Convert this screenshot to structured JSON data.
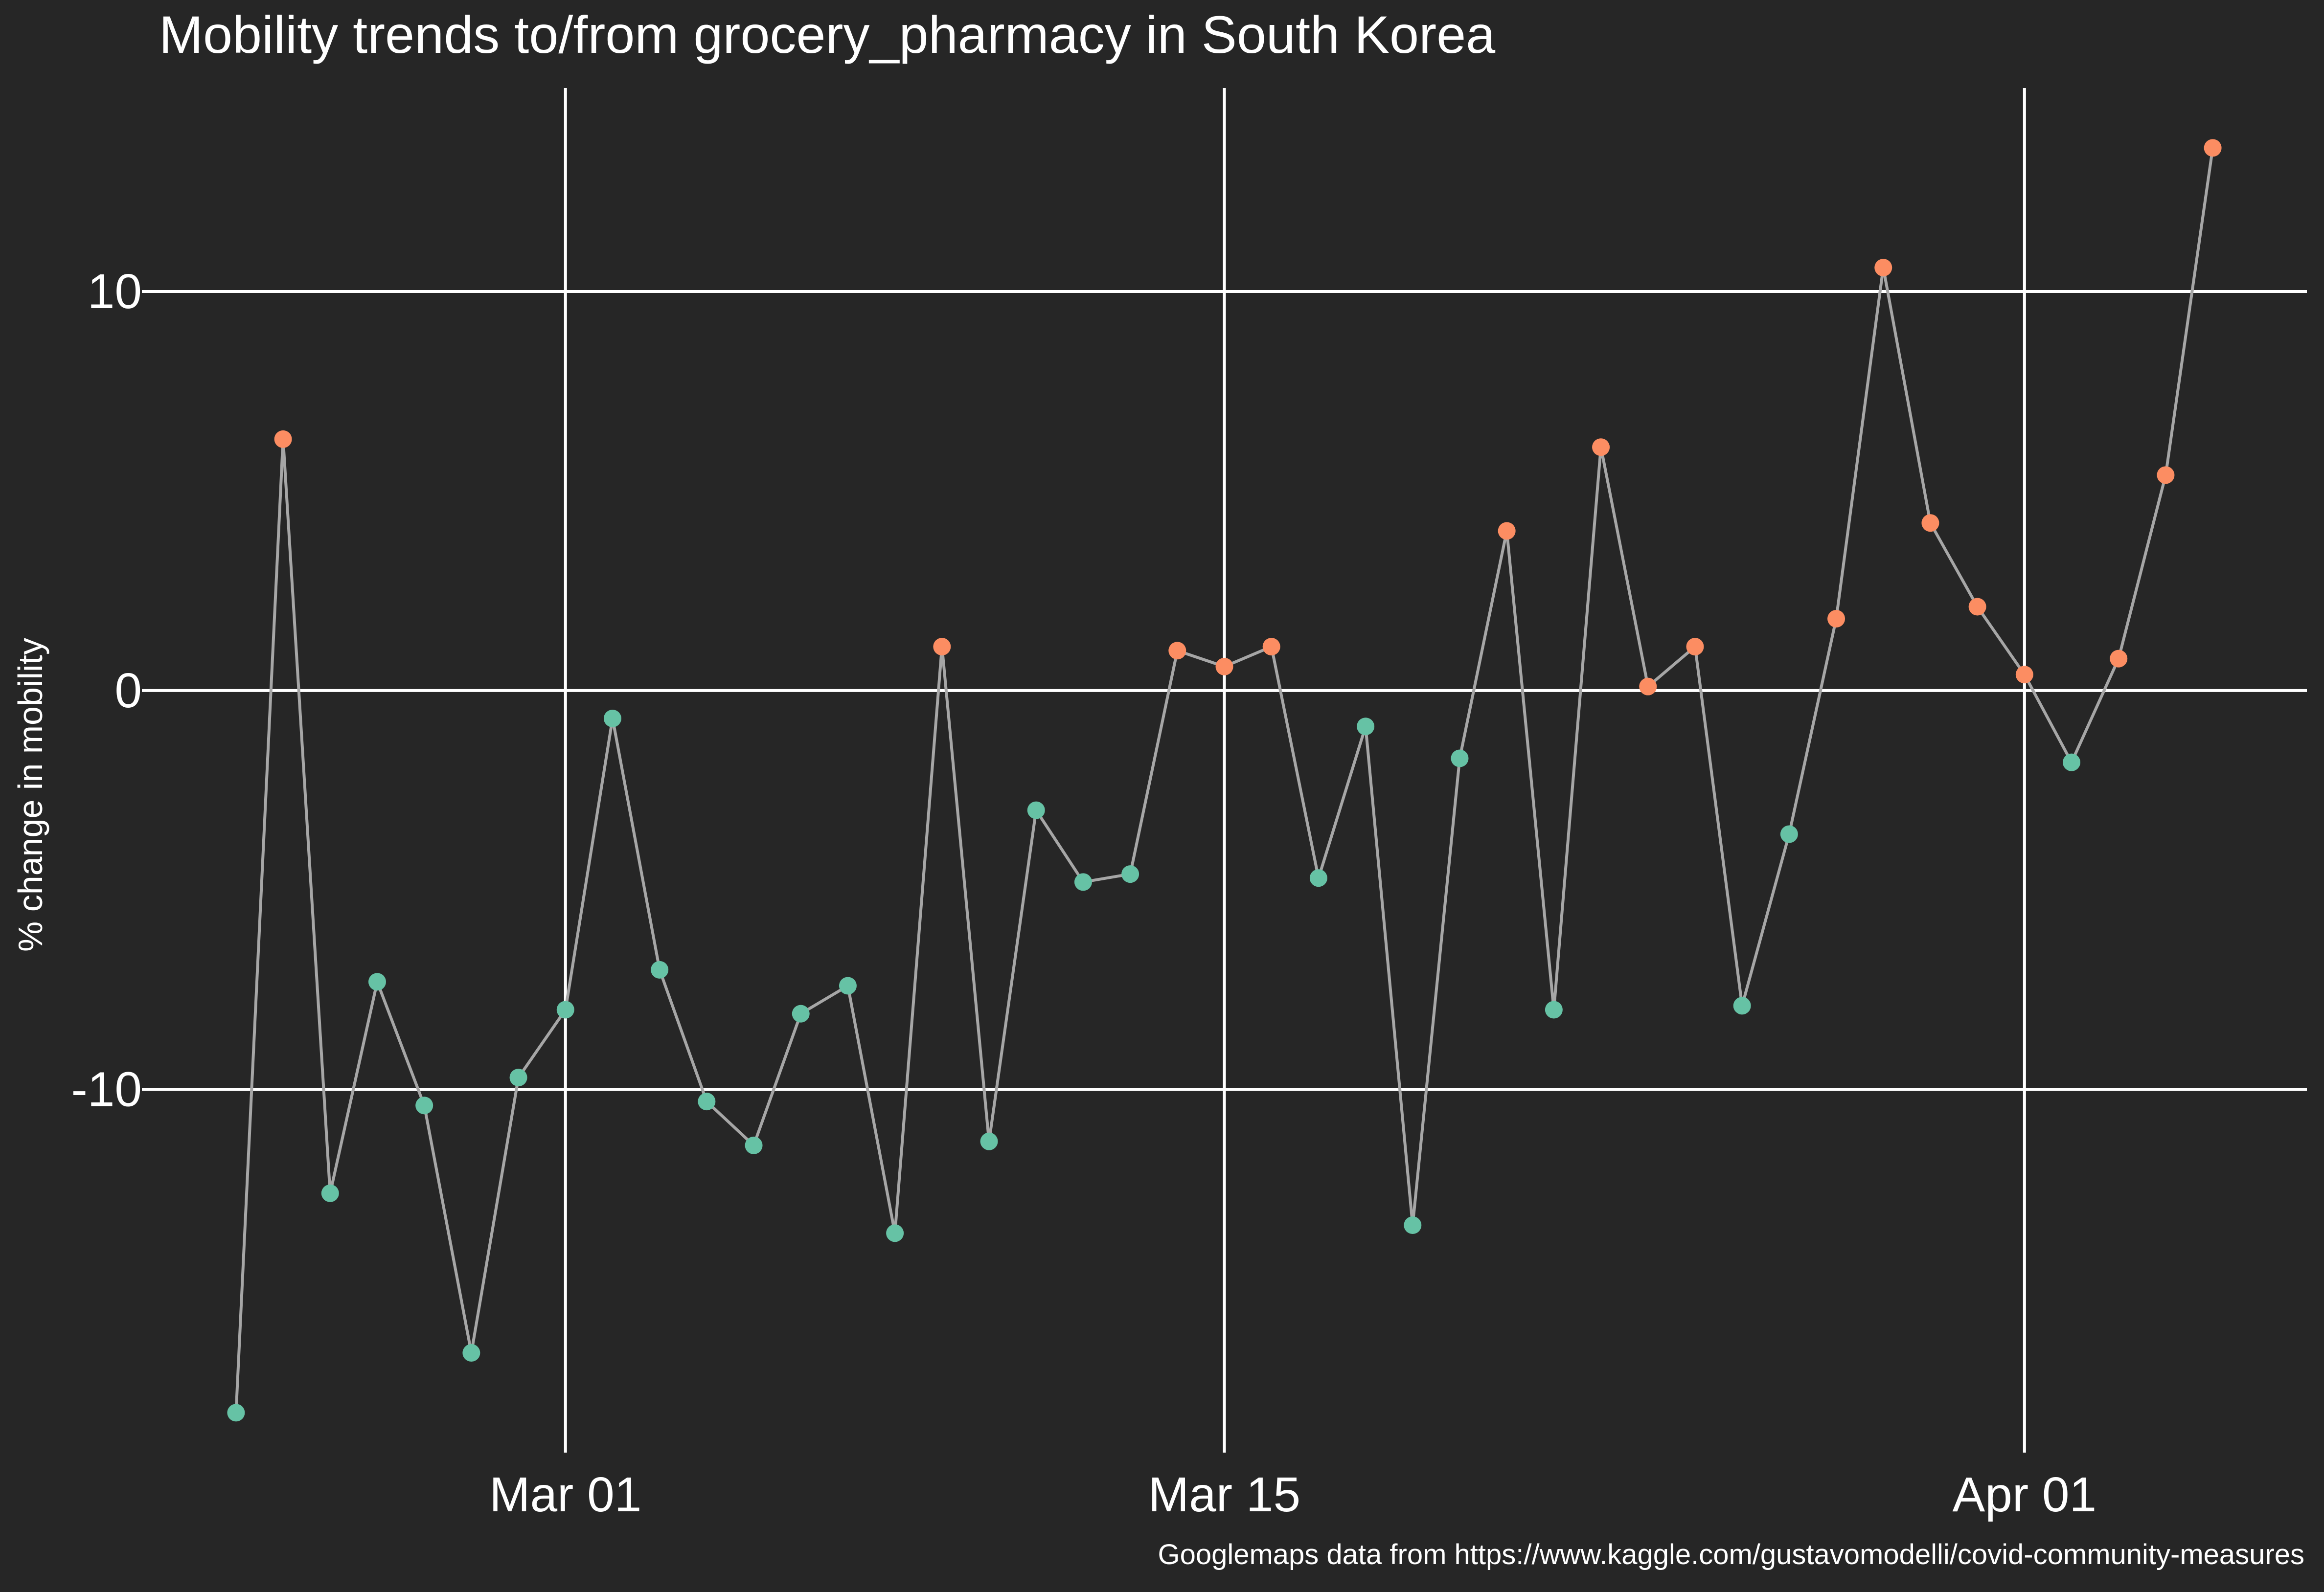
{
  "chart_data": {
    "type": "line",
    "title": "Mobility trends to/from grocery_pharmacy in South Korea",
    "xlabel": "",
    "ylabel": "% change in mobility",
    "caption": "Googlemaps data from https://www.kaggle.com/gustavomodelli/covid-community-measures",
    "x_ticks": [
      {
        "date": "2020-03-01",
        "label": "Mar 01"
      },
      {
        "date": "2020-03-15",
        "label": "Mar 15"
      },
      {
        "date": "2020-04-01",
        "label": "Apr 01"
      }
    ],
    "y_ticks": [
      {
        "value": -10,
        "label": "-10"
      },
      {
        "value": 0,
        "label": "0"
      },
      {
        "value": 10,
        "label": "10"
      }
    ],
    "xlim": [
      "2020-02-21",
      "2020-04-07"
    ],
    "ylim": [
      -19.1,
      15.1
    ],
    "grid": true,
    "background": "#262626",
    "line_color": "#a6a6a6",
    "point_color_positive": "#fc8d62",
    "point_color_negative": "#66c2a5",
    "points": [
      {
        "date": "2020-02-23",
        "value": -18.1
      },
      {
        "date": "2020-02-24",
        "value": 6.3
      },
      {
        "date": "2020-02-25",
        "value": -12.6
      },
      {
        "date": "2020-02-26",
        "value": -7.3
      },
      {
        "date": "2020-02-27",
        "value": -10.4
      },
      {
        "date": "2020-02-28",
        "value": -16.6
      },
      {
        "date": "2020-02-29",
        "value": -9.7
      },
      {
        "date": "2020-03-01",
        "value": -8.0
      },
      {
        "date": "2020-03-02",
        "value": -0.7
      },
      {
        "date": "2020-03-03",
        "value": -7.0
      },
      {
        "date": "2020-03-04",
        "value": -10.3
      },
      {
        "date": "2020-03-05",
        "value": -11.4
      },
      {
        "date": "2020-03-06",
        "value": -8.1
      },
      {
        "date": "2020-03-07",
        "value": -7.4
      },
      {
        "date": "2020-03-08",
        "value": -13.6
      },
      {
        "date": "2020-03-09",
        "value": 1.1
      },
      {
        "date": "2020-03-10",
        "value": -11.3
      },
      {
        "date": "2020-03-11",
        "value": -3.0
      },
      {
        "date": "2020-03-12",
        "value": -4.8
      },
      {
        "date": "2020-03-13",
        "value": -4.6
      },
      {
        "date": "2020-03-14",
        "value": 1.0
      },
      {
        "date": "2020-03-15",
        "value": 0.6
      },
      {
        "date": "2020-03-16",
        "value": 1.1
      },
      {
        "date": "2020-03-17",
        "value": -4.7
      },
      {
        "date": "2020-03-18",
        "value": -0.9
      },
      {
        "date": "2020-03-19",
        "value": -13.4
      },
      {
        "date": "2020-03-20",
        "value": -1.7
      },
      {
        "date": "2020-03-21",
        "value": 4.0
      },
      {
        "date": "2020-03-22",
        "value": -8.0
      },
      {
        "date": "2020-03-23",
        "value": 6.1
      },
      {
        "date": "2020-03-24",
        "value": 0.1
      },
      {
        "date": "2020-03-25",
        "value": 1.1
      },
      {
        "date": "2020-03-26",
        "value": -7.9
      },
      {
        "date": "2020-03-27",
        "value": -3.6
      },
      {
        "date": "2020-03-28",
        "value": 1.8
      },
      {
        "date": "2020-03-29",
        "value": 10.6
      },
      {
        "date": "2020-03-30",
        "value": 4.2
      },
      {
        "date": "2020-03-31",
        "value": 2.1
      },
      {
        "date": "2020-04-01",
        "value": 0.4
      },
      {
        "date": "2020-04-02",
        "value": -1.8
      },
      {
        "date": "2020-04-03",
        "value": 0.8
      },
      {
        "date": "2020-04-04",
        "value": 5.4
      },
      {
        "date": "2020-04-05",
        "value": 13.6
      }
    ]
  }
}
